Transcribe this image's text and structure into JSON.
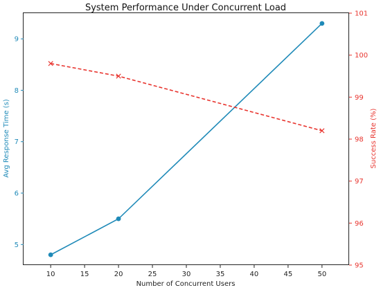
{
  "chart_data": {
    "type": "line",
    "title": "System Performance Under Concurrent Load",
    "xlabel": "Number of Concurrent Users",
    "x": [
      10,
      20,
      50
    ],
    "xlim": [
      6,
      54
    ],
    "xticks": [
      10,
      15,
      20,
      25,
      30,
      35,
      40,
      45,
      50
    ],
    "grid": false,
    "left_axis": {
      "label": "Avg Response Time (s)",
      "color": "#1f8ab8",
      "ylim": [
        4.6,
        9.5
      ],
      "ticks": [
        5,
        6,
        7,
        8,
        9
      ]
    },
    "right_axis": {
      "label": "Success Rate (%)",
      "color": "#e8342e",
      "ylim": [
        95,
        101
      ],
      "ticks": [
        95,
        96,
        97,
        98,
        99,
        100,
        101
      ]
    },
    "series": [
      {
        "axis": "left",
        "values": [
          4.8,
          5.5,
          9.3
        ],
        "color": "#1f8ab8",
        "line_style": "solid",
        "marker": "circle"
      },
      {
        "axis": "right",
        "values": [
          99.8,
          99.5,
          98.2
        ],
        "color": "#e8342e",
        "line_style": "dashed",
        "marker": "x"
      }
    ]
  }
}
